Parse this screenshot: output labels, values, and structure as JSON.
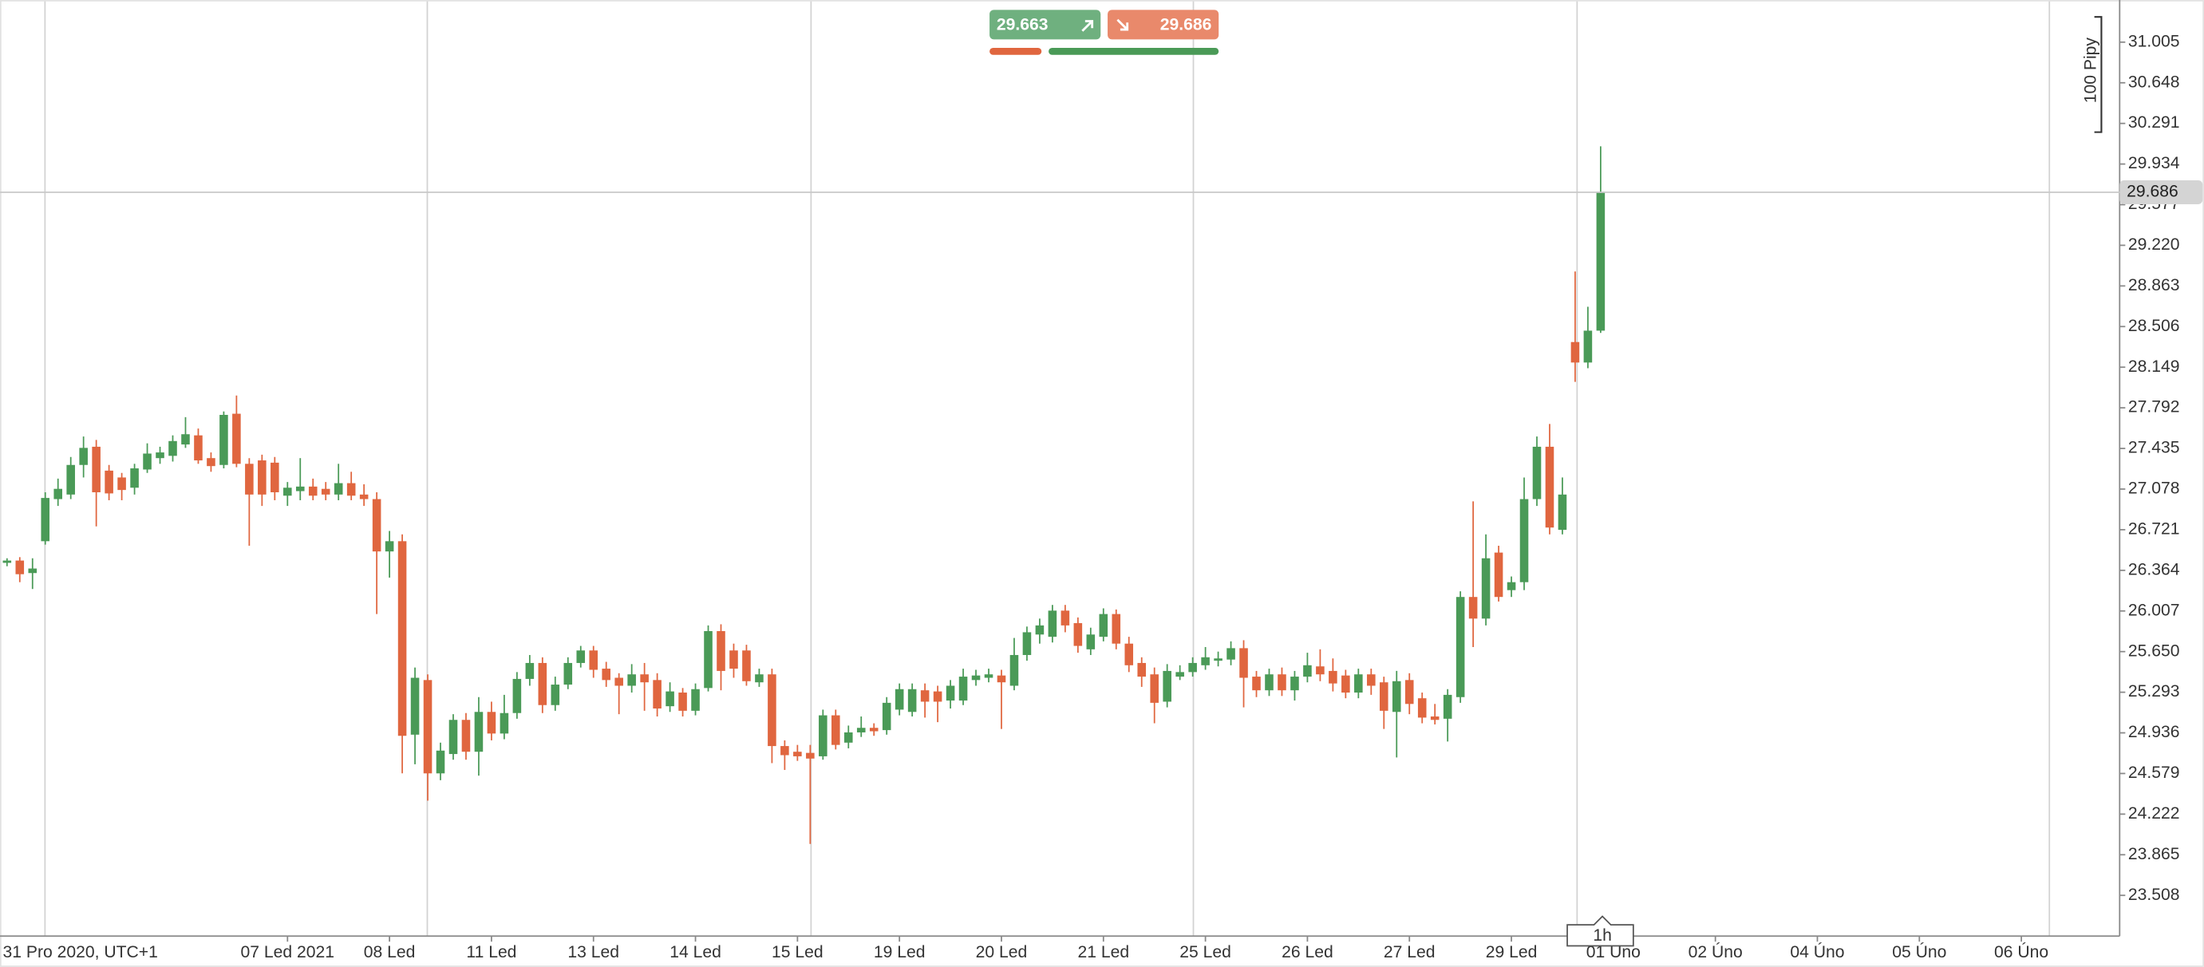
{
  "chart_data": {
    "type": "candlestick",
    "up_color": "#4a9a57",
    "down_color": "#e0663f",
    "open": [
      26.43,
      26.45,
      26.34,
      26.62,
      26.99,
      27.03,
      27.29,
      27.45,
      27.24,
      27.18,
      27.09,
      27.25,
      27.35,
      27.37,
      27.47,
      27.55,
      27.35,
      27.29,
      27.74,
      27.3,
      27.33,
      27.31,
      27.02,
      27.06,
      27.1,
      27.08,
      27.03,
      27.13,
      27.03,
      26.99,
      26.53,
      26.62,
      24.92,
      25.4,
      24.58,
      24.75,
      25.05,
      24.77,
      25.12,
      24.93,
      25.11,
      25.41,
      25.55,
      25.18,
      25.36,
      25.55,
      25.66,
      25.5,
      25.42,
      25.35,
      25.45,
      25.4,
      25.17,
      25.29,
      25.13,
      25.33,
      25.83,
      25.66,
      25.66,
      25.38,
      25.45,
      24.82,
      24.77,
      24.76,
      24.73,
      25.09,
      24.85,
      24.94,
      24.98,
      24.96,
      25.14,
      25.12,
      25.31,
      25.3,
      25.22,
      25.22,
      25.4,
      25.42,
      25.44,
      25.35,
      25.62,
      25.8,
      25.78,
      26.01,
      25.9,
      25.67,
      25.78,
      25.98,
      25.72,
      25.55,
      25.45,
      25.21,
      25.43,
      25.47,
      25.53,
      25.57,
      25.58,
      25.68,
      25.43,
      25.31,
      25.45,
      25.31,
      25.43,
      25.52,
      25.48,
      25.44,
      25.29,
      25.45,
      25.38,
      25.12,
      25.4,
      25.24,
      25.08,
      25.06,
      25.25,
      26.13,
      25.94,
      26.52,
      26.19,
      26.26,
      26.99,
      27.45,
      26.72,
      28.37,
      28.19,
      28.47
    ],
    "high": [
      26.47,
      26.48,
      26.47,
      27.05,
      27.17,
      27.36,
      27.54,
      27.51,
      27.29,
      27.22,
      27.3,
      27.48,
      27.45,
      27.55,
      27.71,
      27.61,
      27.4,
      27.76,
      27.9,
      27.35,
      27.38,
      27.36,
      27.14,
      27.35,
      27.17,
      27.14,
      27.3,
      27.23,
      27.12,
      27.05,
      26.71,
      26.68,
      25.51,
      25.45,
      24.85,
      25.1,
      25.11,
      25.25,
      25.21,
      25.27,
      25.47,
      25.62,
      25.6,
      25.43,
      25.6,
      25.7,
      25.7,
      25.56,
      25.46,
      25.54,
      25.55,
      25.46,
      25.38,
      25.33,
      25.37,
      25.88,
      25.89,
      25.72,
      25.71,
      25.5,
      25.5,
      24.87,
      24.83,
      24.83,
      25.14,
      25.14,
      25.0,
      25.08,
      25.02,
      25.25,
      25.37,
      25.37,
      25.37,
      25.35,
      25.4,
      25.5,
      25.49,
      25.5,
      25.49,
      25.77,
      25.87,
      25.94,
      26.06,
      26.06,
      25.95,
      25.86,
      26.03,
      26.02,
      25.78,
      25.6,
      25.51,
      25.54,
      25.53,
      25.6,
      25.69,
      25.65,
      25.74,
      25.75,
      25.48,
      25.5,
      25.51,
      25.48,
      25.64,
      25.67,
      25.59,
      25.49,
      25.5,
      25.5,
      25.43,
      25.48,
      25.46,
      25.29,
      25.19,
      25.32,
      26.18,
      26.97,
      26.68,
      26.58,
      26.31,
      27.18,
      27.54,
      27.65,
      27.18,
      28.99,
      28.68,
      30.09
    ],
    "low": [
      26.4,
      26.26,
      26.2,
      26.59,
      26.93,
      26.99,
      27.18,
      26.75,
      26.98,
      26.98,
      27.03,
      27.22,
      27.3,
      27.32,
      27.44,
      27.3,
      27.23,
      27.26,
      27.27,
      26.58,
      26.93,
      26.98,
      26.93,
      26.98,
      26.98,
      26.98,
      26.98,
      26.98,
      26.93,
      25.98,
      26.3,
      24.58,
      24.66,
      24.34,
      24.52,
      24.7,
      24.7,
      24.56,
      24.87,
      24.88,
      25.06,
      25.35,
      25.11,
      25.13,
      25.32,
      25.51,
      25.42,
      25.34,
      25.1,
      25.29,
      25.13,
      25.08,
      25.12,
      25.08,
      25.09,
      25.3,
      25.31,
      25.42,
      25.35,
      25.34,
      24.67,
      24.61,
      24.69,
      23.96,
      24.7,
      24.79,
      24.8,
      24.9,
      24.91,
      24.92,
      25.09,
      25.08,
      25.07,
      25.03,
      25.15,
      25.18,
      25.35,
      25.38,
      24.97,
      25.31,
      25.57,
      25.72,
      25.73,
      25.82,
      25.64,
      25.62,
      25.74,
      25.67,
      25.47,
      25.34,
      25.02,
      25.16,
      25.4,
      25.43,
      25.49,
      25.52,
      25.53,
      25.16,
      25.25,
      25.26,
      25.26,
      25.22,
      25.38,
      25.39,
      25.3,
      25.24,
      25.24,
      25.27,
      24.97,
      24.72,
      25.1,
      25.02,
      25.01,
      24.86,
      25.2,
      25.69,
      25.88,
      26.09,
      26.13,
      26.19,
      26.93,
      26.68,
      26.68,
      28.02,
      28.14,
      28.45
    ],
    "close": [
      26.45,
      26.33,
      26.38,
      27.0,
      27.08,
      27.29,
      27.44,
      27.05,
      27.04,
      27.07,
      27.26,
      27.39,
      27.4,
      27.5,
      27.56,
      27.33,
      27.28,
      27.73,
      27.3,
      27.03,
      27.03,
      27.05,
      27.09,
      27.1,
      27.02,
      27.03,
      27.13,
      27.02,
      26.99,
      26.53,
      26.62,
      24.91,
      25.42,
      24.58,
      24.78,
      25.05,
      24.77,
      25.12,
      24.93,
      25.11,
      25.41,
      25.55,
      25.18,
      25.36,
      25.55,
      25.66,
      25.49,
      25.4,
      25.35,
      25.45,
      25.38,
      25.15,
      25.3,
      25.13,
      25.32,
      25.83,
      25.48,
      25.5,
      25.39,
      25.45,
      24.82,
      24.74,
      24.73,
      24.71,
      25.09,
      24.83,
      24.94,
      24.98,
      24.95,
      25.2,
      25.32,
      25.32,
      25.21,
      25.21,
      25.35,
      25.43,
      25.44,
      25.45,
      25.38,
      25.62,
      25.82,
      25.88,
      26.01,
      25.88,
      25.7,
      25.8,
      25.98,
      25.72,
      25.53,
      25.43,
      25.2,
      25.48,
      25.47,
      25.55,
      25.6,
      25.59,
      25.68,
      25.42,
      25.31,
      25.45,
      25.31,
      25.43,
      25.53,
      25.45,
      25.37,
      25.29,
      25.45,
      25.35,
      25.13,
      25.39,
      25.19,
      25.07,
      25.05,
      25.27,
      26.13,
      25.94,
      26.47,
      26.13,
      26.26,
      26.99,
      27.45,
      26.74,
      27.03,
      28.19,
      28.47,
      29.69
    ],
    "x_labels": [
      "31 Pro 2020, UTC+1",
      "07 Led 2021",
      "08 Led",
      "11 Led",
      "13 Led",
      "14 Led",
      "15 Led",
      "19 Led",
      "20 Led",
      "21 Led",
      "25 Led",
      "26 Led",
      "27 Led",
      "29 Led",
      "01 Úno",
      "02 Úno",
      "04 Úno",
      "05 Úno",
      "06 Úno"
    ],
    "ylim": [
      23.163,
      31.375
    ],
    "yticks": [
      23.508,
      23.865,
      24.222,
      24.579,
      24.936,
      25.293,
      {
        "value": 25.65,
        "label": "25.650"
      },
      26.007,
      26.364,
      26.721,
      27.078,
      27.435,
      27.792,
      28.149,
      28.506,
      28.863,
      {
        "value": 29.22,
        "label": "29.220"
      },
      29.577,
      29.934,
      30.291,
      30.648,
      31.005
    ],
    "last_price": 29.686,
    "buy_price": 29.663,
    "sell_price": 29.686,
    "scale_label": "100 Pipy",
    "timeframe": "1h"
  }
}
